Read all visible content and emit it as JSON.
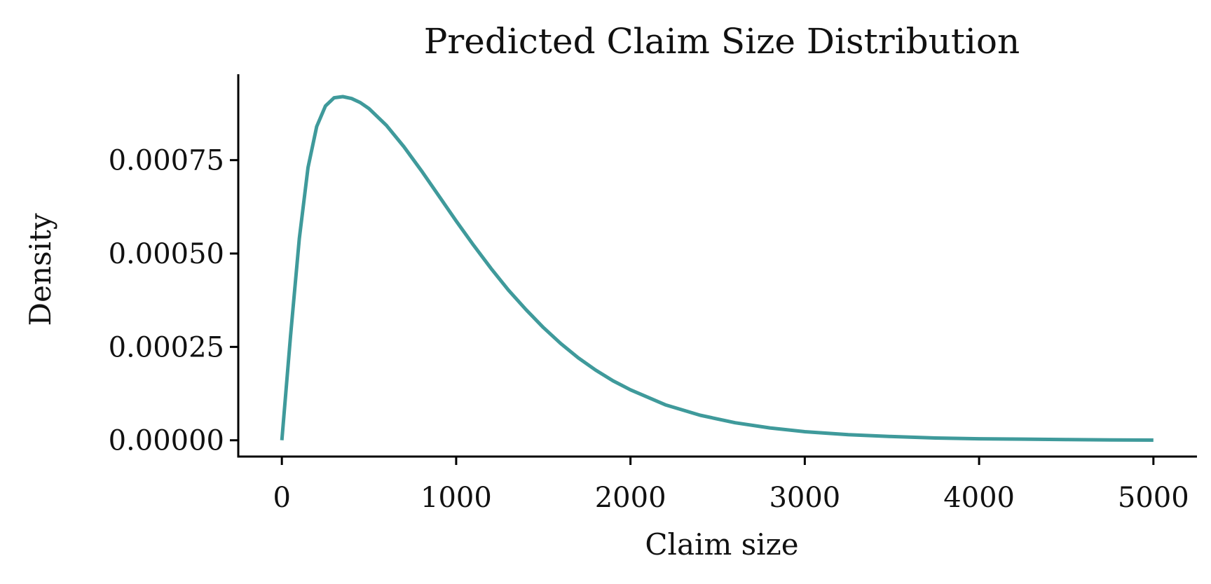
{
  "chart_data": {
    "type": "line",
    "title": "Predicted Claim Size Distribution",
    "xlabel": "Claim size",
    "ylabel": "Density",
    "xlim": [
      -250,
      5250
    ],
    "ylim": [
      -4.36e-05,
      0.00098
    ],
    "xticks": [
      0,
      1000,
      2000,
      3000,
      4000,
      5000
    ],
    "xtick_labels": [
      "0",
      "1000",
      "2000",
      "3000",
      "4000",
      "5000"
    ],
    "yticks": [
      0,
      0.00025,
      0.0005,
      0.00075
    ],
    "ytick_labels": [
      "0.00000",
      "0.00025",
      "0.00050",
      "0.00075"
    ],
    "grid": false,
    "legend": "none",
    "line_color": "#3f9a9b",
    "series": [
      {
        "x": [
          0,
          50,
          100,
          150,
          200,
          250,
          300,
          350,
          400,
          450,
          500,
          600,
          700,
          800,
          900,
          1000,
          1100,
          1200,
          1300,
          1400,
          1500,
          1600,
          1700,
          1800,
          1900,
          2000,
          2200,
          2400,
          2600,
          2800,
          3000,
          3250,
          3500,
          3750,
          4000,
          4250,
          4500,
          4750,
          5000
        ],
        "y": [
          0,
          0.00028,
          0.00054,
          0.00073,
          0.00084,
          0.000895,
          0.000917,
          0.00092,
          0.000915,
          0.000904,
          0.000888,
          0.000843,
          0.000786,
          0.000722,
          0.000655,
          0.000587,
          0.000522,
          0.00046,
          0.000402,
          0.00035,
          0.000302,
          0.000259,
          0.000221,
          0.000188,
          0.000159,
          0.000135,
          9.5e-05,
          6.7e-05,
          4.7e-05,
          3.3e-05,
          2.3e-05,
          1.5e-05,
          1e-05,
          6e-06,
          4e-06,
          3e-06,
          2e-06,
          1e-06,
          5e-07
        ]
      }
    ]
  }
}
